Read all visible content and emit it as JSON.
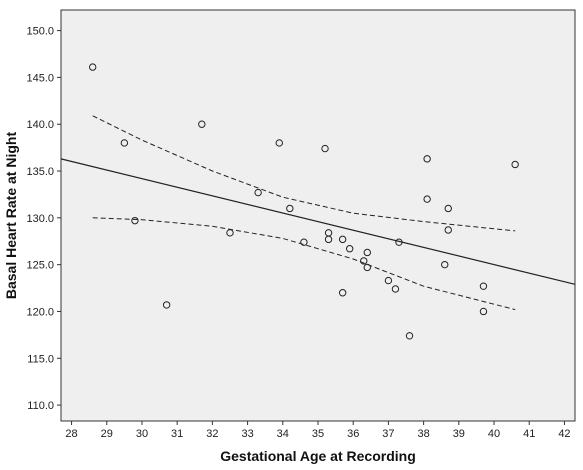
{
  "chart_data": {
    "type": "scatter",
    "xlabel": "Gestational Age at Recording",
    "ylabel": "Basal Heart Rate at Night",
    "xlim": [
      27.7,
      42.3
    ],
    "ylim": [
      108.3,
      152.2
    ],
    "x_ticks": [
      "28",
      "29",
      "30",
      "31",
      "32",
      "33",
      "34",
      "35",
      "36",
      "37",
      "38",
      "39",
      "40",
      "41",
      "42"
    ],
    "y_ticks": [
      "110.0",
      "115.0",
      "120.0",
      "125.0",
      "130.0",
      "135.0",
      "140.0",
      "145.0",
      "150.0"
    ],
    "grid": false,
    "legend": "none",
    "plot_background": "#efefef",
    "colors": {
      "points": "#222222",
      "fit_line": "#222222",
      "ci_lines": "#222222"
    },
    "points": [
      {
        "x": 28.6,
        "y": 146.1
      },
      {
        "x": 29.5,
        "y": 138.0
      },
      {
        "x": 29.8,
        "y": 129.7
      },
      {
        "x": 30.7,
        "y": 120.7
      },
      {
        "x": 31.7,
        "y": 140.0
      },
      {
        "x": 32.5,
        "y": 128.4
      },
      {
        "x": 33.3,
        "y": 132.7
      },
      {
        "x": 33.9,
        "y": 138.0
      },
      {
        "x": 34.2,
        "y": 131.0
      },
      {
        "x": 34.6,
        "y": 127.4
      },
      {
        "x": 35.2,
        "y": 137.4
      },
      {
        "x": 35.3,
        "y": 128.4
      },
      {
        "x": 35.3,
        "y": 127.7
      },
      {
        "x": 35.7,
        "y": 127.7
      },
      {
        "x": 35.7,
        "y": 122.0
      },
      {
        "x": 35.9,
        "y": 126.7
      },
      {
        "x": 36.3,
        "y": 125.4
      },
      {
        "x": 36.4,
        "y": 126.3
      },
      {
        "x": 36.4,
        "y": 124.7
      },
      {
        "x": 37.0,
        "y": 123.3
      },
      {
        "x": 37.2,
        "y": 122.4
      },
      {
        "x": 37.3,
        "y": 127.4
      },
      {
        "x": 37.6,
        "y": 117.4
      },
      {
        "x": 38.1,
        "y": 136.3
      },
      {
        "x": 38.1,
        "y": 132.0
      },
      {
        "x": 38.6,
        "y": 125.0
      },
      {
        "x": 38.7,
        "y": 131.0
      },
      {
        "x": 38.7,
        "y": 128.7
      },
      {
        "x": 39.7,
        "y": 122.7
      },
      {
        "x": 39.7,
        "y": 120.0
      },
      {
        "x": 40.6,
        "y": 135.7
      }
    ],
    "fit_line": [
      {
        "x": 27.7,
        "y": 136.3
      },
      {
        "x": 42.3,
        "y": 122.9
      }
    ],
    "ci_upper": [
      {
        "x": 28.6,
        "y": 140.9
      },
      {
        "x": 30.0,
        "y": 138.3
      },
      {
        "x": 32.0,
        "y": 135.0
      },
      {
        "x": 34.0,
        "y": 132.2
      },
      {
        "x": 36.0,
        "y": 130.5
      },
      {
        "x": 38.0,
        "y": 129.6
      },
      {
        "x": 40.6,
        "y": 128.6
      }
    ],
    "ci_lower": [
      {
        "x": 28.6,
        "y": 130.0
      },
      {
        "x": 30.0,
        "y": 129.8
      },
      {
        "x": 32.0,
        "y": 129.1
      },
      {
        "x": 34.0,
        "y": 127.8
      },
      {
        "x": 36.0,
        "y": 125.6
      },
      {
        "x": 38.0,
        "y": 122.7
      },
      {
        "x": 40.6,
        "y": 120.2
      }
    ]
  }
}
